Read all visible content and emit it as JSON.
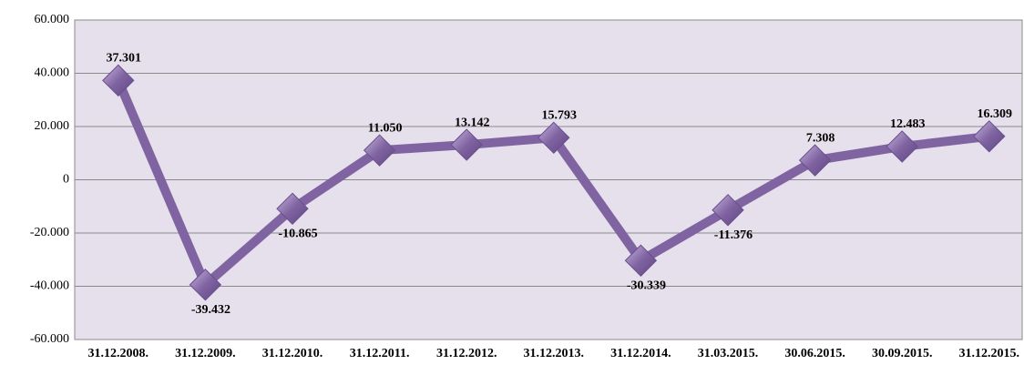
{
  "chart_data": {
    "type": "line",
    "categories": [
      "31.12.2008.",
      "31.12.2009.",
      "31.12.2010.",
      "31.12.2011.",
      "31.12.2012.",
      "31.12.2013.",
      "31.12.2014.",
      "31.03.2015.",
      "30.06.2015.",
      "30.09.2015.",
      "31.12.2015."
    ],
    "series": [
      {
        "color": "#8064a2",
        "values": [
          37301,
          -39432,
          -10865,
          11050,
          13142,
          15793,
          -30339,
          -11376,
          7308,
          12483,
          16309
        ],
        "value_labels": [
          "37.301",
          "-39.432",
          "-10.865",
          "11.050",
          "13.142",
          "15.793",
          "-30.339",
          "-11.376",
          "7.308",
          "12.483",
          "16.309"
        ]
      }
    ],
    "ylim": [
      -60000,
      60000
    ],
    "yticks": [
      {
        "value": -60000,
        "label": "-60.000"
      },
      {
        "value": -40000,
        "label": "-40.000"
      },
      {
        "value": -20000,
        "label": "-20.000"
      },
      0,
      {
        "value": 20000,
        "label": "20.000"
      },
      {
        "value": 40000,
        "label": "40.000"
      },
      {
        "value": 60000,
        "label": "60.000"
      }
    ],
    "grid": true
  }
}
